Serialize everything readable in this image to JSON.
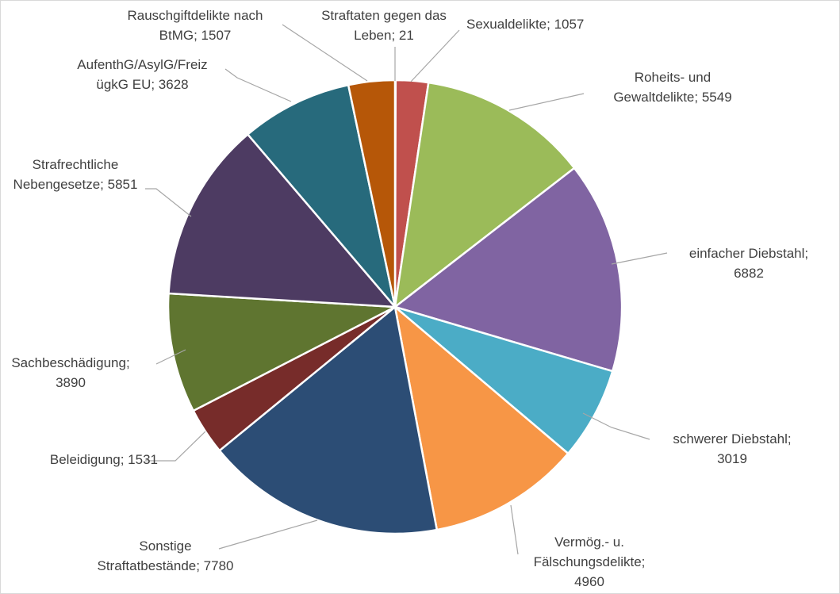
{
  "chart_data": {
    "type": "pie",
    "title": "",
    "slices": [
      {
        "label_lines": [
          "Straftaten gegen das",
          "Leben; 21"
        ],
        "category": "Straftaten gegen das Leben",
        "value": 21,
        "color": "#5b9bd5"
      },
      {
        "label_lines": [
          "Sexualdelikte; 1057"
        ],
        "category": "Sexualdelikte",
        "value": 1057,
        "color": "#c0504d"
      },
      {
        "label_lines": [
          "Roheits- und",
          "Gewaltdelikte; 5549"
        ],
        "category": "Roheits- und Gewaltdelikte",
        "value": 5549,
        "color": "#9bbb59"
      },
      {
        "label_lines": [
          "einfacher Diebstahl;",
          "6882"
        ],
        "category": "einfacher Diebstahl",
        "value": 6882,
        "color": "#8064a2"
      },
      {
        "label_lines": [
          "schwerer Diebstahl;",
          "3019"
        ],
        "category": "schwerer Diebstahl",
        "value": 3019,
        "color": "#4bacc6"
      },
      {
        "label_lines": [
          "Vermög.- u.",
          "Fälschungsdelikte;",
          "4960"
        ],
        "category": "Vermög.- u. Fälschungsdelikte",
        "value": 4960,
        "color": "#f79646"
      },
      {
        "label_lines": [
          "Sonstige",
          "Straftatbestände; 7780"
        ],
        "category": "Sonstige Straftatbestände",
        "value": 7780,
        "color": "#2c4d75"
      },
      {
        "label_lines": [
          "Beleidigung; 1531"
        ],
        "category": "Beleidigung",
        "value": 1531,
        "color": "#772c2a"
      },
      {
        "label_lines": [
          "Sachbeschädigung;",
          "3890"
        ],
        "category": "Sachbeschädigung",
        "value": 3890,
        "color": "#5f7530"
      },
      {
        "label_lines": [
          "Strafrechtliche",
          "Nebengesetze; 5851"
        ],
        "category": "Strafrechtliche Nebengesetze",
        "value": 5851,
        "color": "#4d3b62"
      },
      {
        "label_lines": [
          "AufenthG/AsylG/Freiz",
          "ügkG EU; 3628"
        ],
        "category": "AufenthG/AsylG/FreizügkG EU",
        "value": 3628,
        "color": "#276a7c"
      },
      {
        "label_lines": [
          "Rauschgiftdelikte nach",
          "BtMG; 1507"
        ],
        "category": "Rauschgiftdelikte nach BtMG",
        "value": 1507,
        "color": "#b65708"
      }
    ]
  }
}
